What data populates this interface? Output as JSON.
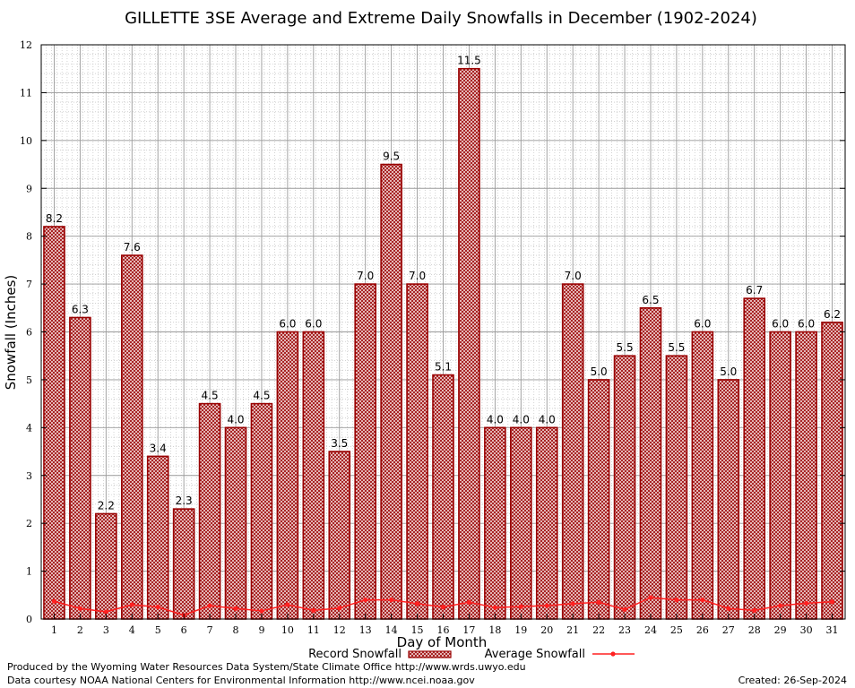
{
  "chart_data": {
    "type": "bar",
    "title": "GILLETTE 3SE Average and Extreme Daily Snowfalls in December (1902-2024)",
    "xlabel": "Day of Month",
    "ylabel": "Snowfall (Inches)",
    "ylim": [
      0,
      12
    ],
    "yticks": [
      "0",
      "1",
      "2",
      "3",
      "4",
      "5",
      "6",
      "7",
      "8",
      "9",
      "10",
      "11",
      "12"
    ],
    "grid": true,
    "legend_position": "bottom",
    "categories": [
      "1",
      "2",
      "3",
      "4",
      "5",
      "6",
      "7",
      "8",
      "9",
      "10",
      "11",
      "12",
      "13",
      "14",
      "15",
      "16",
      "17",
      "18",
      "19",
      "20",
      "21",
      "22",
      "23",
      "24",
      "25",
      "26",
      "27",
      "28",
      "29",
      "30",
      "31"
    ],
    "series": [
      {
        "name": "Record Snowfall",
        "kind": "bar",
        "color": "#990000",
        "values": [
          8.2,
          6.3,
          2.2,
          7.6,
          3.4,
          2.3,
          4.5,
          4.0,
          4.5,
          6.0,
          6.0,
          3.5,
          7.0,
          9.5,
          7.0,
          5.1,
          11.5,
          4.0,
          4.0,
          4.0,
          7.0,
          5.0,
          5.5,
          6.5,
          5.5,
          6.0,
          5.0,
          6.7,
          6.0,
          6.0,
          6.2
        ],
        "labels": [
          "8.2",
          "6.3",
          "2.2",
          "7.6",
          "3.4",
          "2.3",
          "4.5",
          "4.0",
          "4.5",
          "6.0",
          "6.0",
          "3.5",
          "7.0",
          "9.5",
          "7.0",
          "5.1",
          "11.5",
          "4.0",
          "4.0",
          "4.0",
          "7.0",
          "5.0",
          "5.5",
          "6.5",
          "5.5",
          "6.0",
          "5.0",
          "6.7",
          "6.0",
          "6.0",
          "6.2"
        ]
      },
      {
        "name": "Average Snowfall",
        "kind": "line",
        "color": "#ff2020",
        "values": [
          0.37,
          0.22,
          0.15,
          0.3,
          0.25,
          0.08,
          0.28,
          0.22,
          0.17,
          0.3,
          0.18,
          0.23,
          0.4,
          0.4,
          0.32,
          0.25,
          0.35,
          0.24,
          0.26,
          0.28,
          0.32,
          0.35,
          0.2,
          0.45,
          0.4,
          0.4,
          0.22,
          0.18,
          0.28,
          0.33,
          0.36
        ]
      }
    ]
  },
  "footer": {
    "credit_line1": "Produced by the Wyoming Water Resources Data System/State Climate Office http://www.wrds.uwyo.edu",
    "credit_line2": "Data courtesy NOAA National Centers for Environmental Information http://www.ncei.noaa.gov",
    "created": "Created:  26-Sep-2024"
  }
}
